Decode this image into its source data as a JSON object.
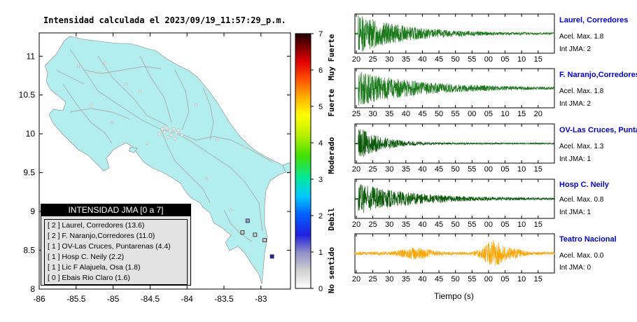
{
  "map": {
    "title": "Intensidad calculada el 2023/09/19_11:57:29_p.m.",
    "x_ticks": [
      "-86",
      "-85.5",
      "-85",
      "-84.5",
      "-84",
      "-83.5",
      "-83"
    ],
    "y_ticks": [
      "11",
      "10.5",
      "10",
      "9.5",
      "9",
      "8.5",
      "8"
    ],
    "xlim": [
      -86,
      -82.6
    ],
    "ylim": [
      8,
      11.3
    ],
    "land_color": "#b2eeee",
    "road_color": "#aaaaaa",
    "stations": [
      {
        "lon": -82.85,
        "lat": 8.42,
        "color": "#2222bb"
      },
      {
        "lon": -83.18,
        "lat": 8.88,
        "color": "#9999dd"
      },
      {
        "lon": -83.25,
        "lat": 8.73,
        "color": "#cccccc"
      },
      {
        "lon": -83.08,
        "lat": 8.7,
        "color": "#cccccc"
      },
      {
        "lon": -82.95,
        "lat": 8.63,
        "color": "#cccccc"
      }
    ]
  },
  "legend": {
    "title": "INTENSIDAD JMA [0 a 7]",
    "entries": [
      "[ 2 ]  Laurel, Corredores (13.6)",
      "[ 2 ]  F. Naranjo,Corredores (11.0)",
      "[ 1 ]  OV-Las Cruces, Puntarenas (4.4)",
      "[ 1 ]  Hosp C. Neily (2.2)",
      "[ 1 ]  Lic F Alajuela, Osa (1.8)",
      "[ 0 ]  Ebais Rio Claro (1.6)"
    ]
  },
  "colorbar": {
    "ticks": [
      "0",
      "1",
      "2",
      "3",
      "4",
      "5",
      "6",
      "7"
    ],
    "categories": [
      "No sentido",
      "Debil",
      "Moderado",
      "Fuerte",
      "Muy Fuerte"
    ],
    "range": [
      0,
      7
    ]
  },
  "seismograms": {
    "xlabel": "Tiempo (s)",
    "panels": [
      {
        "name": "Laurel, Corredores",
        "acel": "Acel. Max. 1.8",
        "int": "Int JMA: 2",
        "color": "#1a7a1a",
        "ticks": [
          "20",
          "25",
          "30",
          "35",
          "40",
          "45",
          "50",
          "55",
          "00",
          "05",
          "10",
          "15"
        ],
        "t0": 19,
        "mode": "decay",
        "amp": 1.0,
        "decay": 14,
        "onset": 20
      },
      {
        "name": "F. Naranjo,Corredores",
        "acel": "Acel. Max. 1.8",
        "int": "Int JMA: 2",
        "color": "#1a7a1a",
        "ticks": [
          "25",
          "30",
          "35",
          "40",
          "45",
          "50",
          "55",
          "00",
          "05",
          "10",
          "15",
          "20"
        ],
        "t0": 21,
        "mode": "decay",
        "amp": 0.9,
        "decay": 18,
        "onset": 22
      },
      {
        "name": "OV-Las Cruces, Puntar",
        "acel": "Acel. Max. 1.3",
        "int": "Int JMA: 1",
        "color": "#0a5a0a",
        "ticks": [
          "20",
          "25",
          "30",
          "35",
          "40",
          "45",
          "50",
          "55",
          "00",
          "05",
          "10",
          "15"
        ],
        "t0": 16,
        "mode": "decay",
        "amp": 0.85,
        "decay": 7,
        "onset": 17
      },
      {
        "name": "Hosp C. Neily",
        "acel": "Acel. Max. 0.8",
        "int": "Int JMA: 1",
        "color": "#0a5a0a",
        "ticks": [
          "20",
          "25",
          "30",
          "35",
          "40",
          "45",
          "50",
          "55",
          "00",
          "05",
          "10",
          "15"
        ],
        "t0": 19,
        "mode": "decay",
        "amp": 0.8,
        "decay": 16,
        "onset": 20
      },
      {
        "name": "Teatro Nacional",
        "acel": "Acel. Max. 0.0",
        "int": "Int JMA: 0",
        "color": "#ffa500",
        "ticks": [
          "20",
          "25",
          "30",
          "35",
          "40",
          "45",
          "50",
          "55",
          "00",
          "05",
          "10",
          "15"
        ],
        "t0": 19,
        "mode": "noise",
        "amp": 0.7,
        "decay": 0,
        "onset": 19
      }
    ]
  }
}
